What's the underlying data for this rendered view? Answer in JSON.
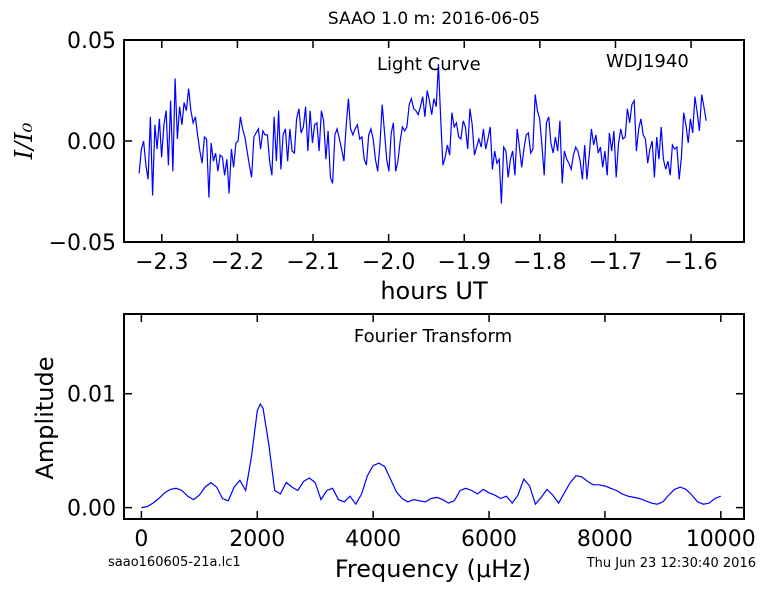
{
  "header": {
    "title": "SAAO 1.0 m:  2016-06-05"
  },
  "footer": {
    "filename": "saao160605-21a.lc1",
    "timestamp": "Thu Jun 23 12:30:40 2016"
  },
  "chart_data": [
    {
      "type": "line",
      "annotation_title": "Light Curve",
      "annotation_target": "WDJ1940",
      "xlabel": "hours UT",
      "ylabel": "I/I₀",
      "xlim": [
        -2.35,
        -1.53
      ],
      "ylim": [
        -0.05,
        0.05
      ],
      "xticks": [
        -2.3,
        -2.2,
        -2.1,
        -2.0,
        -1.9,
        -1.8,
        -1.7,
        -1.6
      ],
      "xtick_labels": [
        "−2.3",
        "−2.2",
        "−2.1",
        "−2.0",
        "−1.9",
        "−1.8",
        "−1.7",
        "−1.6"
      ],
      "yticks": [
        -0.05,
        0.0,
        0.05
      ],
      "ytick_labels": [
        "−0.05",
        "0.00",
        "0.05"
      ],
      "color": "#0000ff",
      "series": [
        {
          "x_start": -2.33,
          "x_end": -1.58,
          "y": [
            -0.016,
            -0.004,
            0.0,
            -0.012,
            -0.019,
            0.012,
            -0.027,
            0.008,
            -0.004,
            0.011,
            -0.008,
            0.008,
            0.015,
            -0.012,
            0.02,
            -0.015,
            0.031,
            0.001,
            0.017,
            0.008,
            0.019,
            0.015,
            0.026,
            0.015,
            0.009,
            0.012,
            0.003,
            -0.005,
            -0.011,
            0.002,
            0.001,
            -0.028,
            -0.001,
            -0.01,
            -0.006,
            -0.015,
            -0.007,
            -0.008,
            -0.017,
            -0.009,
            -0.026,
            -0.004,
            -0.013,
            -0.001,
            0.0,
            0.012,
            0.006,
            0.002,
            -0.005,
            -0.012,
            -0.018,
            0.002,
            0.004,
            0.006,
            -0.004,
            0.005,
            0.003,
            0.003,
            -0.01,
            -0.017,
            0.012,
            -0.01,
            0.015,
            -0.014,
            0.003,
            0.006,
            -0.01,
            0.006,
            -0.005,
            -0.006,
            0.011,
            0.016,
            0.004,
            0.007,
            0.017,
            -0.005,
            0.015,
            -0.001,
            0.008,
            0.009,
            -0.005,
            0.015,
            0.01,
            -0.009,
            0.005,
            -0.018,
            -0.021,
            0.003,
            0.006,
            0.001,
            -0.004,
            -0.01,
            0.007,
            0.021,
            0.006,
            0.003,
            0.006,
            0.008,
            0.001,
            0.002,
            -0.009,
            -0.012,
            0.003,
            0.006,
            0.001,
            -0.009,
            -0.015,
            -0.002,
            0.018,
            0.005,
            -0.009,
            -0.015,
            0.004,
            0.009,
            -0.015,
            -0.01,
            0.0,
            0.007,
            0.005,
            0.007,
            0.018,
            0.021,
            0.016,
            0.015,
            0.013,
            0.017,
            0.022,
            0.012,
            0.025,
            0.02,
            0.013,
            0.021,
            0.017,
            0.038,
            0.011,
            -0.012,
            -0.008,
            -0.002,
            -0.007,
            0.014,
            0.007,
            0.009,
            0.002,
            0.001,
            0.01,
            0.007,
            -0.004,
            0.016,
            0.008,
            -0.007,
            -0.003,
            0.001,
            -0.003,
            0.006,
            -0.004,
            0.001,
            0.007,
            -0.014,
            -0.005,
            -0.011,
            -0.009,
            -0.031,
            -0.003,
            -0.005,
            -0.018,
            -0.009,
            -0.005,
            -0.017,
            0.006,
            -0.003,
            -0.013,
            -0.004,
            0.003,
            0.004,
            -0.006,
            -0.004,
            0.023,
            0.015,
            0.011,
            -0.002,
            -0.017,
            0.009,
            0.012,
            -0.001,
            -0.006,
            0.002,
            -0.005,
            0.01,
            -0.021,
            -0.005,
            -0.009,
            -0.011,
            -0.014,
            -0.007,
            -0.003,
            -0.005,
            -0.01,
            -0.019,
            -0.002,
            -0.019,
            -0.007,
            0.006,
            -0.002,
            0.003,
            -0.006,
            -0.003,
            -0.013,
            -0.005,
            -0.017,
            0.004,
            -0.005,
            0.005,
            -0.018,
            -0.002,
            0.006,
            0.001,
            0.002,
            0.016,
            0.009,
            0.018,
            0.02,
            -0.005,
            0.006,
            0.011,
            0.003,
            0.001,
            -0.011,
            -0.004,
            0.0,
            -0.018,
            0.002,
            -0.009,
            0.007,
            -0.009,
            -0.014,
            -0.01,
            -0.017,
            -0.002,
            -0.004,
            -0.003,
            -0.019,
            -0.008,
            0.014,
            0.008,
            -0.001,
            0.011,
            0.004,
            0.022,
            0.014,
            0.005,
            0.023,
            0.017,
            0.01
          ]
        }
      ]
    },
    {
      "type": "line",
      "annotation_title": "Fourier Transform",
      "xlabel": "Frequency (μHz)",
      "ylabel": "Amplitude",
      "xlim": [
        -300,
        10400
      ],
      "ylim": [
        -0.001,
        0.017
      ],
      "xticks": [
        0,
        2000,
        4000,
        6000,
        8000,
        10000
      ],
      "xtick_labels": [
        "0",
        "2000",
        "4000",
        "6000",
        "8000",
        "10000"
      ],
      "yticks": [
        0.0,
        0.01
      ],
      "ytick_labels": [
        "0.00",
        "0.01"
      ],
      "color": "#0000ff",
      "series": [
        {
          "x": [
            0,
            100,
            200,
            300,
            400,
            500,
            600,
            700,
            800,
            900,
            1000,
            1100,
            1200,
            1300,
            1400,
            1500,
            1600,
            1700,
            1800,
            1900,
            2000,
            2050,
            2100,
            2200,
            2300,
            2400,
            2500,
            2600,
            2700,
            2800,
            2900,
            3000,
            3100,
            3200,
            3300,
            3400,
            3500,
            3600,
            3700,
            3800,
            3900,
            4000,
            4100,
            4200,
            4300,
            4400,
            4500,
            4600,
            4700,
            4800,
            4900,
            5000,
            5100,
            5200,
            5300,
            5400,
            5500,
            5600,
            5700,
            5800,
            5900,
            6000,
            6100,
            6200,
            6300,
            6400,
            6500,
            6600,
            6700,
            6800,
            6900,
            7000,
            7100,
            7200,
            7300,
            7400,
            7500,
            7600,
            7700,
            7800,
            7900,
            8000,
            8100,
            8200,
            8300,
            8400,
            8500,
            8600,
            8700,
            8800,
            8900,
            9000,
            9100,
            9200,
            9300,
            9400,
            9500,
            9600,
            9700,
            9800,
            9900,
            10000
          ],
          "y": [
            0.0,
            0.0001,
            0.0004,
            0.0008,
            0.0013,
            0.0016,
            0.0017,
            0.0015,
            0.001,
            0.0007,
            0.0011,
            0.0018,
            0.0022,
            0.0018,
            0.0008,
            0.0006,
            0.0018,
            0.0024,
            0.0015,
            0.0045,
            0.0085,
            0.0091,
            0.0087,
            0.0055,
            0.0015,
            0.0012,
            0.0022,
            0.0018,
            0.0015,
            0.0023,
            0.0026,
            0.0022,
            0.0007,
            0.0015,
            0.0017,
            0.0007,
            0.0005,
            0.001,
            0.0003,
            0.0012,
            0.0028,
            0.0037,
            0.0039,
            0.0036,
            0.0025,
            0.0014,
            0.0008,
            0.0005,
            0.0007,
            0.0006,
            0.0005,
            0.0008,
            0.0009,
            0.0007,
            0.0004,
            0.0006,
            0.0015,
            0.0017,
            0.0015,
            0.0012,
            0.0016,
            0.0013,
            0.0011,
            0.0008,
            0.001,
            0.0004,
            0.0011,
            0.0025,
            0.0019,
            0.0003,
            0.0009,
            0.0016,
            0.0011,
            0.0004,
            0.0013,
            0.0022,
            0.0028,
            0.0027,
            0.0023,
            0.002,
            0.002,
            0.0019,
            0.0017,
            0.0015,
            0.0012,
            0.001,
            0.0009,
            0.0008,
            0.0006,
            0.0004,
            0.0003,
            0.0005,
            0.0011,
            0.0016,
            0.0018,
            0.0016,
            0.0011,
            0.0005,
            0.0003,
            0.0004,
            0.0008,
            0.001
          ]
        }
      ]
    }
  ]
}
